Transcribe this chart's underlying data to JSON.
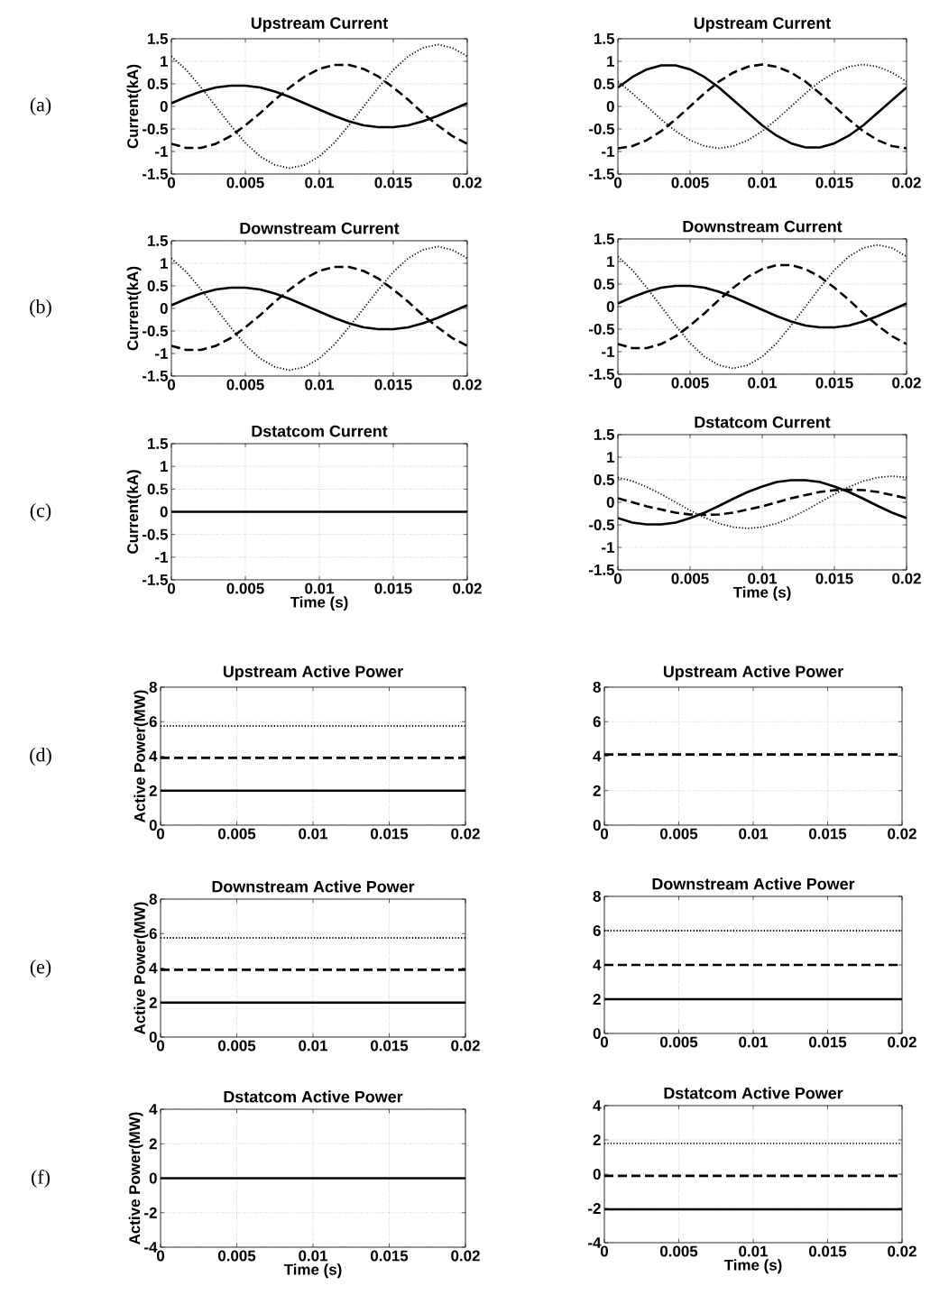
{
  "chart_data": [
    {
      "type": "line",
      "title": "Upstream Current",
      "ylabel": "Current(kA)",
      "annotations": [
        "(a)"
      ],
      "xlim": [
        0,
        0.02
      ],
      "ylim": [
        -1.5,
        1.5
      ],
      "xticks": [
        0,
        0.005,
        0.01,
        0.015,
        0.02
      ],
      "yticks": [
        -1.5,
        -1,
        -0.5,
        0,
        0.5,
        1,
        1.5
      ],
      "grid": true,
      "x": [
        0,
        0.001,
        0.002,
        0.003,
        0.004,
        0.005,
        0.006,
        0.007,
        0.008,
        0.009,
        0.01,
        0.011,
        0.012,
        0.013,
        0.014,
        0.015,
        0.016,
        0.017,
        0.018,
        0.019,
        0.02
      ],
      "series": [
        {
          "color": "#000000",
          "line_style": "solid",
          "values": [
            0.07,
            0.21,
            0.33,
            0.42,
            0.46,
            0.46,
            0.42,
            0.33,
            0.21,
            0.07,
            -0.07,
            -0.21,
            -0.33,
            -0.42,
            -0.46,
            -0.46,
            -0.42,
            -0.33,
            -0.21,
            -0.07,
            0.07
          ]
        },
        {
          "color": "#000000",
          "line_style": "dashed",
          "values": [
            -0.83,
            -0.92,
            -0.92,
            -0.83,
            -0.66,
            -0.42,
            -0.15,
            0.15,
            0.42,
            0.66,
            0.83,
            0.92,
            0.92,
            0.83,
            0.66,
            0.42,
            0.15,
            -0.15,
            -0.42,
            -0.66,
            -0.83
          ]
        },
        {
          "color": "#000000",
          "line_style": "dotted",
          "values": [
            1.11,
            0.81,
            0.42,
            0,
            -0.42,
            -0.81,
            -1.11,
            -1.3,
            -1.37,
            -1.3,
            -1.11,
            -0.81,
            -0.42,
            0,
            0.42,
            0.81,
            1.11,
            1.3,
            1.37,
            1.3,
            1.11
          ]
        }
      ]
    },
    {
      "type": "line",
      "title": "Upstream Current",
      "xlim": [
        0,
        0.02
      ],
      "ylim": [
        -1.5,
        1.5
      ],
      "xticks": [
        0,
        0.005,
        0.01,
        0.015,
        0.02
      ],
      "yticks": [
        -1.5,
        -1,
        -0.5,
        0,
        0.5,
        1,
        1.5
      ],
      "grid": true,
      "x": [
        0,
        0.001,
        0.002,
        0.003,
        0.004,
        0.005,
        0.006,
        0.007,
        0.008,
        0.009,
        0.01,
        0.011,
        0.012,
        0.013,
        0.014,
        0.015,
        0.016,
        0.017,
        0.018,
        0.019,
        0.02
      ],
      "series": [
        {
          "color": "#000000",
          "line_style": "solid",
          "values": [
            0.42,
            0.65,
            0.82,
            0.91,
            0.91,
            0.82,
            0.65,
            0.42,
            0.14,
            -0.14,
            -0.42,
            -0.65,
            -0.82,
            -0.91,
            -0.91,
            -0.82,
            -0.65,
            -0.42,
            -0.14,
            0.14,
            0.42
          ]
        },
        {
          "color": "#000000",
          "line_style": "dashed",
          "values": [
            -0.93,
            -0.88,
            -0.75,
            -0.55,
            -0.29,
            0,
            0.29,
            0.55,
            0.75,
            0.88,
            0.93,
            0.88,
            0.75,
            0.55,
            0.29,
            0,
            -0.29,
            -0.55,
            -0.75,
            -0.88,
            -0.93
          ]
        },
        {
          "color": "#000000",
          "line_style": "dotted",
          "values": [
            0.55,
            0.29,
            0,
            -0.29,
            -0.55,
            -0.75,
            -0.88,
            -0.93,
            -0.88,
            -0.75,
            -0.55,
            -0.29,
            0,
            0.29,
            0.55,
            0.75,
            0.88,
            0.93,
            0.88,
            0.75,
            0.55
          ]
        }
      ]
    },
    {
      "type": "line",
      "title": "Downstream Current",
      "ylabel": "Current(kA)",
      "annotations": [
        "(b)"
      ],
      "xlim": [
        0,
        0.02
      ],
      "ylim": [
        -1.5,
        1.5
      ],
      "xticks": [
        0,
        0.005,
        0.01,
        0.015,
        0.02
      ],
      "yticks": [
        -1.5,
        -1,
        -0.5,
        0,
        0.5,
        1,
        1.5
      ],
      "grid": true,
      "x": [
        0,
        0.001,
        0.002,
        0.003,
        0.004,
        0.005,
        0.006,
        0.007,
        0.008,
        0.009,
        0.01,
        0.011,
        0.012,
        0.013,
        0.014,
        0.015,
        0.016,
        0.017,
        0.018,
        0.019,
        0.02
      ],
      "series": [
        {
          "color": "#000000",
          "line_style": "solid",
          "values": [
            0.07,
            0.21,
            0.33,
            0.42,
            0.46,
            0.46,
            0.42,
            0.33,
            0.21,
            0.07,
            -0.07,
            -0.21,
            -0.33,
            -0.42,
            -0.46,
            -0.46,
            -0.42,
            -0.33,
            -0.21,
            -0.07,
            0.07
          ]
        },
        {
          "color": "#000000",
          "line_style": "dashed",
          "values": [
            -0.83,
            -0.92,
            -0.92,
            -0.83,
            -0.66,
            -0.42,
            -0.15,
            0.15,
            0.42,
            0.66,
            0.83,
            0.92,
            0.92,
            0.83,
            0.66,
            0.42,
            0.15,
            -0.15,
            -0.42,
            -0.66,
            -0.83
          ]
        },
        {
          "color": "#000000",
          "line_style": "dotted",
          "values": [
            1.11,
            0.81,
            0.42,
            0,
            -0.42,
            -0.81,
            -1.11,
            -1.3,
            -1.37,
            -1.3,
            -1.11,
            -0.81,
            -0.42,
            0,
            0.42,
            0.81,
            1.11,
            1.3,
            1.37,
            1.3,
            1.11
          ]
        }
      ]
    },
    {
      "type": "line",
      "title": "Downstream Current",
      "xlim": [
        0,
        0.02
      ],
      "ylim": [
        -1.5,
        1.5
      ],
      "xticks": [
        0,
        0.005,
        0.01,
        0.015,
        0.02
      ],
      "yticks": [
        -1.5,
        -1,
        -0.5,
        0,
        0.5,
        1,
        1.5
      ],
      "grid": true,
      "x": [
        0,
        0.001,
        0.002,
        0.003,
        0.004,
        0.005,
        0.006,
        0.007,
        0.008,
        0.009,
        0.01,
        0.011,
        0.012,
        0.013,
        0.014,
        0.015,
        0.016,
        0.017,
        0.018,
        0.019,
        0.02
      ],
      "series": [
        {
          "color": "#000000",
          "line_style": "solid",
          "values": [
            0.07,
            0.21,
            0.33,
            0.42,
            0.46,
            0.46,
            0.42,
            0.33,
            0.21,
            0.07,
            -0.07,
            -0.21,
            -0.33,
            -0.42,
            -0.46,
            -0.46,
            -0.42,
            -0.33,
            -0.21,
            -0.07,
            0.07
          ]
        },
        {
          "color": "#000000",
          "line_style": "dashed",
          "values": [
            -0.83,
            -0.92,
            -0.92,
            -0.83,
            -0.66,
            -0.42,
            -0.15,
            0.15,
            0.42,
            0.66,
            0.83,
            0.92,
            0.92,
            0.83,
            0.66,
            0.42,
            0.15,
            -0.15,
            -0.42,
            -0.66,
            -0.83
          ]
        },
        {
          "color": "#000000",
          "line_style": "dotted",
          "values": [
            1.11,
            0.81,
            0.42,
            0,
            -0.42,
            -0.81,
            -1.11,
            -1.3,
            -1.37,
            -1.3,
            -1.11,
            -0.81,
            -0.42,
            0,
            0.42,
            0.81,
            1.11,
            1.3,
            1.37,
            1.3,
            1.11
          ]
        }
      ]
    },
    {
      "type": "line",
      "title": "Dstatcom Current",
      "xlabel": "Time (s)",
      "ylabel": "Current(kA)",
      "annotations": [
        "(c)"
      ],
      "xlim": [
        0,
        0.02
      ],
      "ylim": [
        -1.5,
        1.5
      ],
      "xticks": [
        0,
        0.005,
        0.01,
        0.015,
        0.02
      ],
      "yticks": [
        -1.5,
        -1,
        -0.5,
        0,
        0.5,
        1,
        1.5
      ],
      "grid": true,
      "x": [
        0,
        0.02
      ],
      "series": [
        {
          "color": "#000000",
          "line_style": "solid",
          "values": [
            0,
            0
          ]
        }
      ]
    },
    {
      "type": "line",
      "title": "Dstatcom Current",
      "xlabel": "Time (s)",
      "xlim": [
        0,
        0.02
      ],
      "ylim": [
        -1.5,
        1.5
      ],
      "xticks": [
        0,
        0.005,
        0.01,
        0.015,
        0.02
      ],
      "yticks": [
        -1.5,
        -1,
        -0.5,
        0,
        0.5,
        1,
        1.5
      ],
      "grid": true,
      "x": [
        0,
        0.001,
        0.002,
        0.003,
        0.004,
        0.005,
        0.006,
        0.007,
        0.008,
        0.009,
        0.01,
        0.011,
        0.012,
        0.013,
        0.014,
        0.015,
        0.016,
        0.017,
        0.018,
        0.019,
        0.02
      ],
      "series": [
        {
          "color": "#000000",
          "line_style": "solid",
          "values": [
            -0.35,
            -0.45,
            -0.49,
            -0.49,
            -0.45,
            -0.35,
            -0.23,
            -0.08,
            0.08,
            0.23,
            0.35,
            0.45,
            0.49,
            0.49,
            0.45,
            0.35,
            0.23,
            0.08,
            -0.08,
            -0.23,
            -0.35
          ]
        },
        {
          "color": "#000000",
          "line_style": "dashed",
          "values": [
            0.09,
            0,
            -0.09,
            -0.16,
            -0.23,
            -0.27,
            -0.28,
            -0.27,
            -0.23,
            -0.16,
            -0.09,
            0,
            0.09,
            0.16,
            0.23,
            0.27,
            0.28,
            0.27,
            0.23,
            0.16,
            0.09
          ]
        },
        {
          "color": "#000000",
          "line_style": "dotted",
          "values": [
            0.55,
            0.47,
            0.34,
            0.18,
            0,
            -0.18,
            -0.34,
            -0.47,
            -0.55,
            -0.58,
            -0.55,
            -0.47,
            -0.34,
            -0.18,
            0,
            0.18,
            0.34,
            0.47,
            0.55,
            0.58,
            0.55
          ]
        }
      ]
    },
    {
      "type": "line",
      "title": "Upstream Active Power",
      "ylabel": "Active Power(MW)",
      "annotations": [
        "(d)"
      ],
      "xlim": [
        0,
        0.02
      ],
      "ylim": [
        0,
        8
      ],
      "xticks": [
        0,
        0.005,
        0.01,
        0.015,
        0.02
      ],
      "yticks": [
        0,
        2,
        4,
        6,
        8
      ],
      "grid": true,
      "x": [
        0,
        0.02
      ],
      "series": [
        {
          "color": "#000000",
          "line_style": "solid",
          "values": [
            2,
            2
          ]
        },
        {
          "color": "#000000",
          "line_style": "dashed",
          "values": [
            3.9,
            3.9
          ]
        },
        {
          "color": "#000000",
          "line_style": "dotted",
          "values": [
            5.75,
            5.75
          ]
        }
      ]
    },
    {
      "type": "line",
      "title": "Upstream Active Power",
      "xlim": [
        0,
        0.02
      ],
      "ylim": [
        0,
        8
      ],
      "xticks": [
        0,
        0.005,
        0.01,
        0.015,
        0.02
      ],
      "yticks": [
        0,
        2,
        4,
        6,
        8
      ],
      "grid": true,
      "x": [
        0,
        0.02
      ],
      "series": [
        {
          "color": "#000000",
          "line_style": "dashed",
          "values": [
            4.1,
            4.1
          ]
        }
      ]
    },
    {
      "type": "line",
      "title": "Downstream Active Power",
      "ylabel": "Active Power(MW)",
      "annotations": [
        "(e)"
      ],
      "xlim": [
        0,
        0.02
      ],
      "ylim": [
        0,
        8
      ],
      "xticks": [
        0,
        0.005,
        0.01,
        0.015,
        0.02
      ],
      "yticks": [
        0,
        2,
        4,
        6,
        8
      ],
      "grid": true,
      "x": [
        0,
        0.02
      ],
      "series": [
        {
          "color": "#000000",
          "line_style": "solid",
          "values": [
            2,
            2
          ]
        },
        {
          "color": "#000000",
          "line_style": "dashed",
          "values": [
            3.9,
            3.9
          ]
        },
        {
          "color": "#000000",
          "line_style": "dotted",
          "values": [
            5.75,
            5.75
          ]
        }
      ]
    },
    {
      "type": "line",
      "title": "Downstream Active Power",
      "xlim": [
        0,
        0.02
      ],
      "ylim": [
        0,
        8
      ],
      "xticks": [
        0,
        0.005,
        0.01,
        0.015,
        0.02
      ],
      "yticks": [
        0,
        2,
        4,
        6,
        8
      ],
      "grid": true,
      "x": [
        0,
        0.02
      ],
      "series": [
        {
          "color": "#000000",
          "line_style": "solid",
          "values": [
            2,
            2
          ]
        },
        {
          "color": "#000000",
          "line_style": "dashed",
          "values": [
            4,
            4
          ]
        },
        {
          "color": "#000000",
          "line_style": "dotted",
          "values": [
            6,
            6
          ]
        }
      ]
    },
    {
      "type": "line",
      "title": "Dstatcom Active Power",
      "xlabel": "Time (s)",
      "ylabel": "Active Power(MW)",
      "annotations": [
        "(f)"
      ],
      "xlim": [
        0,
        0.02
      ],
      "ylim": [
        -4,
        4
      ],
      "xticks": [
        0,
        0.005,
        0.01,
        0.015,
        0.02
      ],
      "yticks": [
        -4,
        -2,
        0,
        2,
        4
      ],
      "grid": true,
      "x": [
        0,
        0.02
      ],
      "series": [
        {
          "color": "#000000",
          "line_style": "solid",
          "values": [
            0,
            0
          ]
        }
      ]
    },
    {
      "type": "line",
      "title": "Dstatcom Active Power",
      "xlabel": "Time (s)",
      "xlim": [
        0,
        0.02
      ],
      "ylim": [
        -4,
        4
      ],
      "xticks": [
        0,
        0.005,
        0.01,
        0.015,
        0.02
      ],
      "yticks": [
        -4,
        -2,
        0,
        2,
        4
      ],
      "grid": true,
      "x": [
        0,
        0.02
      ],
      "series": [
        {
          "color": "#000000",
          "line_style": "solid",
          "values": [
            -2.05,
            -2.05
          ]
        },
        {
          "color": "#000000",
          "line_style": "dashed",
          "values": [
            -0.1,
            -0.1
          ]
        },
        {
          "color": "#000000",
          "line_style": "dotted",
          "values": [
            1.8,
            1.8
          ]
        }
      ]
    }
  ]
}
